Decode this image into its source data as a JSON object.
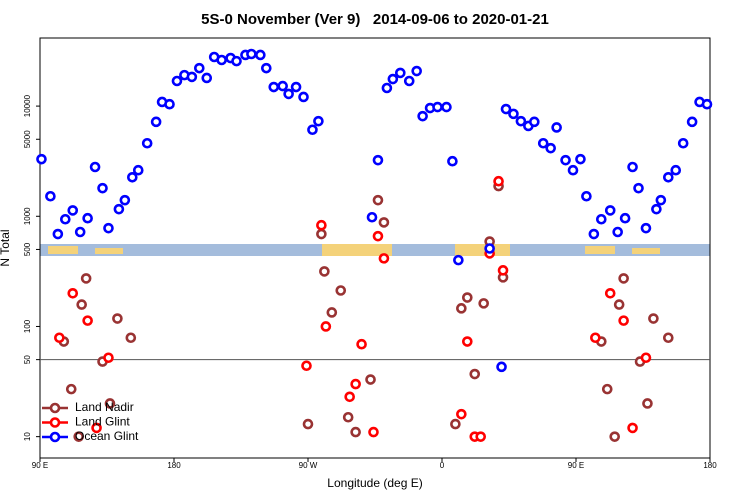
{
  "chart_data": {
    "type": "scatter",
    "title": "5S-0 November (Ver 9)   2014-09-06 to 2020-01-21",
    "x_label": "Longitude (deg E)",
    "y_label": "N Total",
    "ylog": true,
    "xlim": [
      90,
      540
    ],
    "ylim": [
      6.4,
      41500
    ],
    "xticks": [
      {
        "value": 90,
        "label": "90 E"
      },
      180,
      {
        "value": 270,
        "label": "90 W"
      },
      {
        "value": 360,
        "label": "0"
      },
      {
        "value": 450,
        "label": "90 E"
      },
      {
        "value": 540,
        "label": "180"
      }
    ],
    "yticks": [
      10,
      50,
      100,
      500,
      1000,
      5000,
      10000
    ],
    "hline": 50,
    "legend": "lower-left",
    "series": [
      {
        "name": "Land Nadir",
        "color": "#993333",
        "x": [
          106,
          111,
          116,
          121,
          118,
          132,
          137,
          142,
          151,
          270,
          279,
          281,
          286,
          292,
          297,
          302,
          312,
          317,
          321,
          369,
          373,
          377,
          382,
          388,
          392,
          398,
          401,
          467,
          471,
          476,
          482,
          479,
          493,
          498,
          502,
          512
        ],
        "values": [
          73,
          27,
          10,
          273,
          158,
          48,
          20,
          118,
          79,
          13,
          690,
          316,
          134,
          212,
          15,
          11,
          33,
          1400,
          880,
          13,
          146,
          183,
          37,
          162,
          590,
          1880,
          279,
          73,
          27,
          10,
          273,
          158,
          48,
          20,
          118,
          79
        ]
      },
      {
        "name": "Land Glint",
        "color": "#ff0000",
        "x": [
          103,
          112,
          122,
          128,
          136,
          269,
          279,
          282,
          298,
          302,
          306,
          314,
          317,
          321,
          373,
          377,
          382,
          386,
          392,
          398,
          401,
          463,
          473,
          482,
          488,
          497
        ],
        "values": [
          79,
          200,
          113,
          12,
          52,
          44,
          830,
          100,
          23,
          30,
          69,
          11,
          660,
          415,
          16,
          73,
          10,
          10,
          460,
          2080,
          323,
          79,
          200,
          113,
          12,
          52
        ]
      },
      {
        "name": "Ocean Glint",
        "color": "#0000ff",
        "x": [
          91,
          97,
          102,
          107,
          112,
          117,
          122,
          127,
          132,
          136,
          143,
          147,
          152,
          156,
          162,
          168,
          172,
          177,
          182,
          187,
          192,
          197,
          202,
          207,
          212,
          218,
          222,
          228,
          232,
          238,
          242,
          247,
          253,
          257,
          262,
          267,
          273,
          277,
          313,
          317,
          323,
          327,
          332,
          338,
          343,
          347,
          352,
          357,
          363,
          367,
          371,
          392,
          400,
          403,
          408,
          413,
          418,
          422,
          428,
          433,
          437,
          443,
          448,
          453,
          457,
          462,
          467,
          473,
          478,
          483,
          488,
          492,
          497,
          504,
          507,
          512,
          517,
          522,
          528,
          533,
          538
        ],
        "values": [
          3300,
          1520,
          690,
          940,
          1130,
          720,
          960,
          2800,
          1800,
          780,
          1160,
          1400,
          2260,
          2620,
          4600,
          7200,
          10900,
          10400,
          16900,
          19100,
          18400,
          22100,
          18000,
          27900,
          26200,
          27300,
          25600,
          29100,
          29700,
          29100,
          22100,
          14900,
          15200,
          12900,
          14900,
          12100,
          6100,
          7300,
          980,
          3230,
          14600,
          17600,
          20000,
          16900,
          20800,
          8100,
          9600,
          9800,
          9800,
          3160,
          400,
          510,
          43,
          9400,
          8500,
          7300,
          6600,
          7200,
          4600,
          4150,
          6400,
          3230,
          2620,
          3300,
          1520,
          690,
          940,
          1130,
          720,
          960,
          2800,
          1800,
          780,
          1160,
          1400,
          2260,
          2620,
          4600,
          7200,
          10900,
          10400
        ]
      }
    ]
  }
}
